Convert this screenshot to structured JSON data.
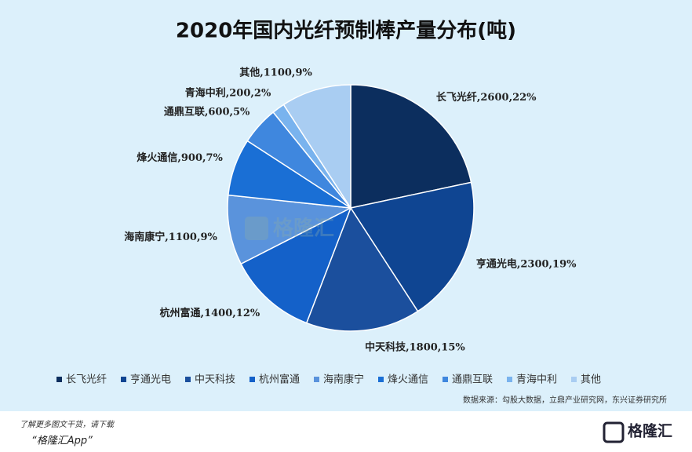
{
  "chart_data": {
    "type": "pie",
    "title": "2020年国内光纤预制棒产量分布(吨)",
    "categories": [
      "长飞光纤",
      "亨通光电",
      "中天科技",
      "杭州富通",
      "海南康宁",
      "烽火通信",
      "通鼎互联",
      "青海中利",
      "其他"
    ],
    "values": [
      2600,
      2300,
      1800,
      1400,
      1100,
      900,
      600,
      200,
      1100
    ],
    "value_labels": [
      "长飞光纤,2600,22%",
      "亨通光电,2300,19%",
      "中天科技,1800,15%",
      "杭州富通,1400,12%",
      "海南康宁,1100,9%",
      "烽火通信,900,7%",
      "通鼎互联,600,5%",
      "青海中利,200,2%",
      "其他,1100,9%"
    ],
    "colors": [
      "#0c2e5e",
      "#0f4592",
      "#1b4f9d",
      "#1461c9",
      "#5a93dc",
      "#1a6fd5",
      "#3f87de",
      "#79b3ee",
      "#a9cdf2"
    ],
    "legend": "bottom",
    "source": "数据来源：勾股大数据，立鼎产业研究网，东兴证券研究所"
  },
  "footer": {
    "promo": "了解更多图文干货，请下载",
    "app": "“格隆汇App”",
    "logo": "格隆汇",
    "watermark": "格隆汇"
  }
}
